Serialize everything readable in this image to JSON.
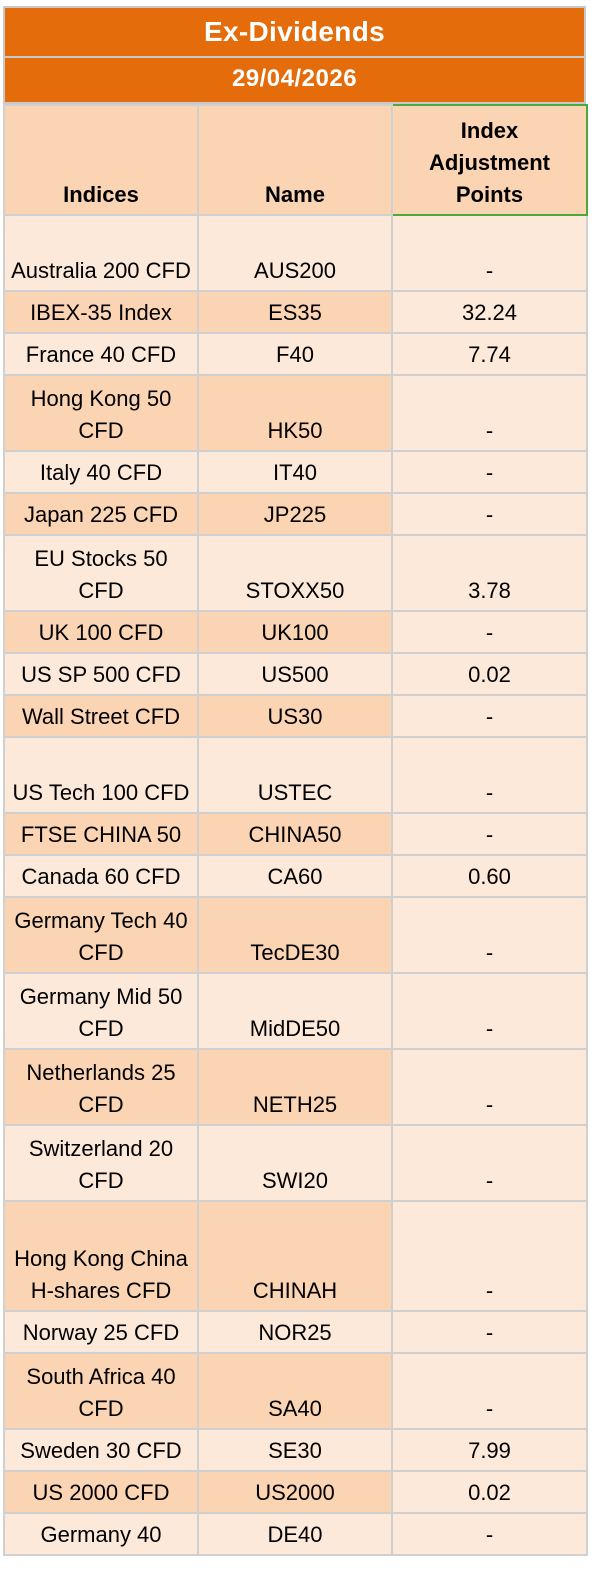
{
  "title": "Ex-Dividends",
  "date": "29/04/2026",
  "columns": {
    "indices": "Indices",
    "name": "Name",
    "adjustment": "Index Adjustment Points"
  },
  "rows": [
    {
      "index": "Australia 200 CFD",
      "name": "AUS200",
      "points": "-"
    },
    {
      "index": "IBEX-35 Index",
      "name": "ES35",
      "points": "32.24"
    },
    {
      "index": "France 40 CFD",
      "name": "F40",
      "points": "7.74"
    },
    {
      "index": "Hong Kong 50 CFD",
      "name": "HK50",
      "points": "-"
    },
    {
      "index": "Italy 40 CFD",
      "name": "IT40",
      "points": "-"
    },
    {
      "index": "Japan 225 CFD",
      "name": "JP225",
      "points": "-"
    },
    {
      "index": "EU Stocks 50 CFD",
      "name": "STOXX50",
      "points": "3.78"
    },
    {
      "index": "UK 100 CFD",
      "name": "UK100",
      "points": "-"
    },
    {
      "index": "US SP 500 CFD",
      "name": "US500",
      "points": "0.02"
    },
    {
      "index": "Wall Street CFD",
      "name": "US30",
      "points": "-"
    },
    {
      "index": "US Tech 100 CFD",
      "name": "USTEC",
      "points": "-"
    },
    {
      "index": "FTSE CHINA 50",
      "name": "CHINA50",
      "points": "-"
    },
    {
      "index": "Canada 60 CFD",
      "name": "CA60",
      "points": "0.60"
    },
    {
      "index": "Germany Tech 40 CFD",
      "name": "TecDE30",
      "points": "-"
    },
    {
      "index": "Germany Mid 50 CFD",
      "name": "MidDE50",
      "points": "-"
    },
    {
      "index": "Netherlands 25 CFD",
      "name": "NETH25",
      "points": "-"
    },
    {
      "index": "Switzerland 20 CFD",
      "name": "SWI20",
      "points": "-"
    },
    {
      "index": "Hong Kong China H-shares CFD",
      "name": "CHINAH",
      "points": "-"
    },
    {
      "index": "Norway 25 CFD",
      "name": "NOR25",
      "points": "-"
    },
    {
      "index": "South Africa 40 CFD",
      "name": "SA40",
      "points": "-"
    },
    {
      "index": "Sweden 30 CFD",
      "name": "SE30",
      "points": "7.99"
    },
    {
      "index": "US 2000 CFD",
      "name": "US2000",
      "points": "0.02"
    },
    {
      "index": "Germany 40",
      "name": "DE40",
      "points": "-"
    }
  ]
}
